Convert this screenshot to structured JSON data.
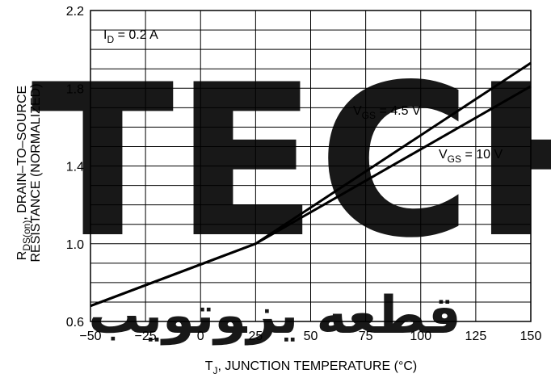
{
  "watermark": {
    "text": "TECH",
    "script_text": "ﻗﻄﻌﻪ ﯾﺰﻮﺗﻮﯾﺐ",
    "color_text": "#ddb8dd",
    "color_script": "#dcdcdc"
  },
  "chart_data": {
    "type": "line",
    "title": "",
    "xlabel": "T",
    "xlabel_sub": "J",
    "xlabel_rest": ", JUNCTION TEMPERATURE (°C)",
    "ylabel_line1_pre": "R",
    "ylabel_line1_sub": "DS(on)",
    "ylabel_line1_post": ", DRAIN–TO–SOURCE",
    "ylabel_line2": "RESISTANCE (NORMALIZED)",
    "xlim": [
      -50,
      150
    ],
    "ylim": [
      0.6,
      2.2
    ],
    "x_ticks": [
      -50,
      -25,
      0,
      25,
      50,
      75,
      100,
      125,
      150
    ],
    "x_tick_labels": [
      "−50",
      "−25",
      "0",
      "25",
      "50",
      "75",
      "100",
      "125",
      "150"
    ],
    "y_ticks": [
      0.6,
      1.0,
      1.4,
      1.8,
      2.2
    ],
    "y_tick_labels": [
      "0.6",
      "1.0",
      "1.4",
      "1.8",
      "2.2"
    ],
    "grid": true,
    "condition": {
      "pre": "I",
      "sub": "D",
      "post": " = 0.2 A"
    },
    "series": [
      {
        "label_pre": "V",
        "label_sub": "GS",
        "label_post": " = 4.5 V",
        "x": [
          -50,
          25,
          150
        ],
        "y": [
          0.68,
          1.0,
          1.93
        ]
      },
      {
        "label_pre": "V",
        "label_sub": "GS",
        "label_post": " = 10 V",
        "x": [
          -50,
          25,
          150
        ],
        "y": [
          0.68,
          1.0,
          1.81
        ]
      }
    ]
  }
}
